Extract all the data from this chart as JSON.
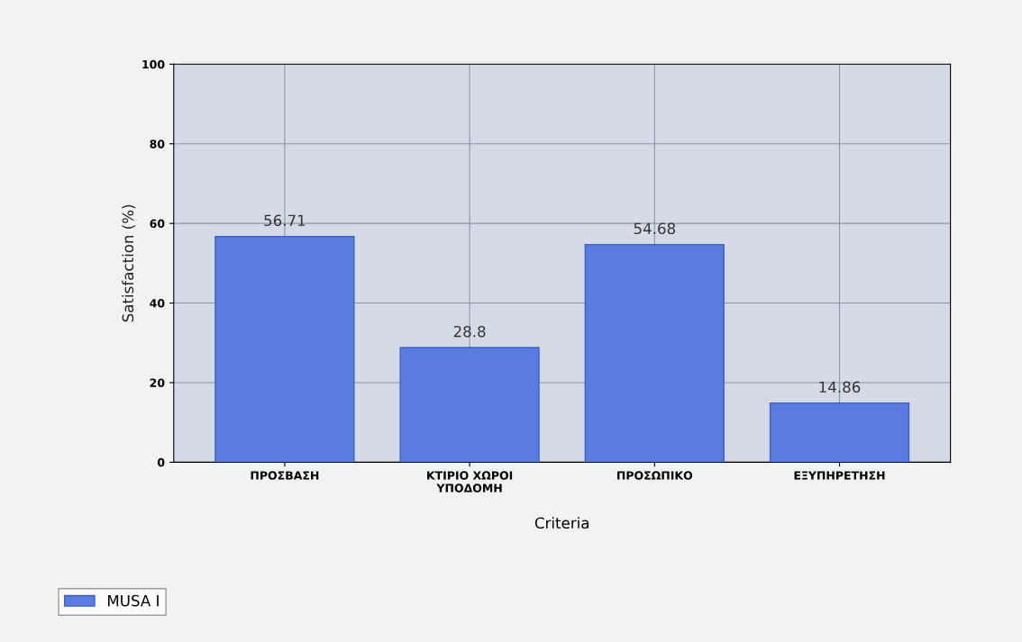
{
  "chart_data": {
    "type": "bar",
    "xlabel": "Criteria",
    "ylabel": "Satisfaction (%)",
    "categories": [
      "ΠΡΟΣΒΑΣΗ",
      "ΚΤΙΡΙΟ ΧΩΡΟΙ\nΥΠΟΔΟΜΗ",
      "ΠΡΟΣΩΠΙΚΟ",
      "ΕΞΥΠΗΡΕΤΗΣΗ"
    ],
    "series": [
      {
        "name": "MUSA I",
        "color": "#5a7be0",
        "values": [
          56.71,
          28.8,
          54.68,
          14.86
        ]
      }
    ],
    "ylim": [
      0,
      100
    ],
    "yticks": [
      0,
      20,
      40,
      60,
      80,
      100
    ],
    "grid": true,
    "data_labels": true,
    "legend": "bottom left"
  }
}
